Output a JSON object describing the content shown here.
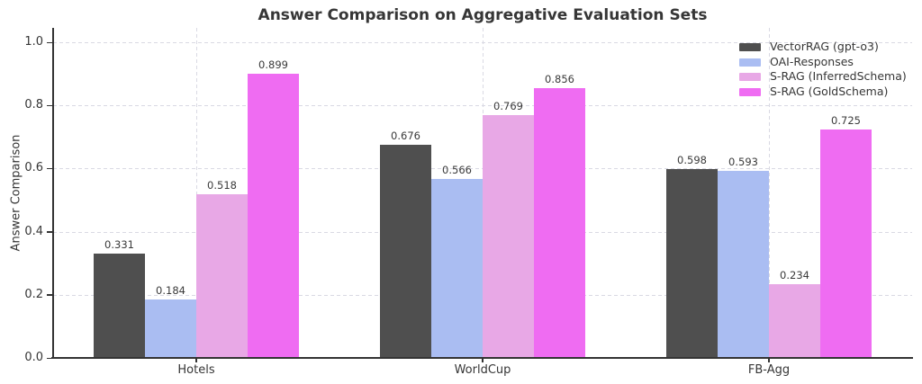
{
  "chart_data": {
    "type": "bar",
    "title": "Answer Comparison on Aggregative Evaluation Sets",
    "xlabel": "",
    "ylabel": "Answer Comparison",
    "categories": [
      "Hotels",
      "WorldCup",
      "FB-Agg"
    ],
    "series": [
      {
        "name": "VectorRAG (gpt-o3)",
        "color": "#4f4f4f",
        "values": [
          0.331,
          0.676,
          0.598
        ]
      },
      {
        "name": "OAI-Responses",
        "color": "#aabdf2",
        "values": [
          0.184,
          0.566,
          0.593
        ]
      },
      {
        "name": "S-RAG (InferredSchema)",
        "color": "#e8a8e6",
        "values": [
          0.518,
          0.769,
          0.234
        ]
      },
      {
        "name": "S-RAG (GoldSchema)",
        "color": "#ef6cf2",
        "values": [
          0.899,
          0.856,
          0.725
        ]
      }
    ],
    "ylim": [
      0.0,
      1.05
    ],
    "yticks": [
      0.0,
      0.2,
      0.4,
      0.6,
      0.8,
      1.0
    ],
    "grid": "dashed gridlines on both axes",
    "legend_position": "upper right",
    "bar_labels": true,
    "colors": {
      "text": "#363636",
      "spine": "#333333",
      "gridline": "#d9d9e3",
      "background": "#ffffff"
    }
  }
}
